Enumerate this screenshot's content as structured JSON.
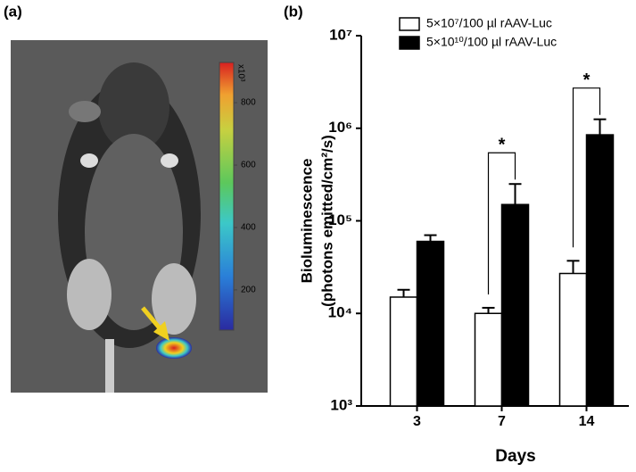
{
  "panel_a": {
    "label": "(a)",
    "colorbar": {
      "unit_label": "x10³",
      "lim": [
        71,
        929
      ],
      "ticks": [
        200,
        400,
        600,
        800
      ]
    }
  },
  "chart_data": {
    "type": "bar",
    "panel_label": "(b)",
    "log_y": true,
    "categories": [
      "3",
      "7",
      "14"
    ],
    "series": [
      {
        "name": "5×10⁷/100 µl rAAV-Luc",
        "color": "#ffffff",
        "values": [
          15000,
          10000,
          27000
        ],
        "errors": [
          3000,
          1500,
          10000
        ]
      },
      {
        "name": "5×10¹⁰/100 µl rAAV-Luc",
        "color": "#000000",
        "values": [
          60000,
          150000,
          850000
        ],
        "errors": [
          10000,
          100000,
          400000
        ]
      }
    ],
    "ylim": [
      1000,
      10000000
    ],
    "yticks": [
      {
        "value": 1000,
        "label": "10³"
      },
      {
        "value": 10000,
        "label": "10⁴"
      },
      {
        "value": 100000,
        "label": "10⁵"
      },
      {
        "value": 1000000,
        "label": "10⁶"
      },
      {
        "value": 10000000,
        "label": "10⁷"
      }
    ],
    "y_label": [
      "Bioluminescence",
      "(photons emitted/cm²/s)"
    ],
    "x_label": "Days",
    "annotations": [
      {
        "text": "*",
        "category": 1
      },
      {
        "text": "*",
        "category": 2
      }
    ]
  }
}
